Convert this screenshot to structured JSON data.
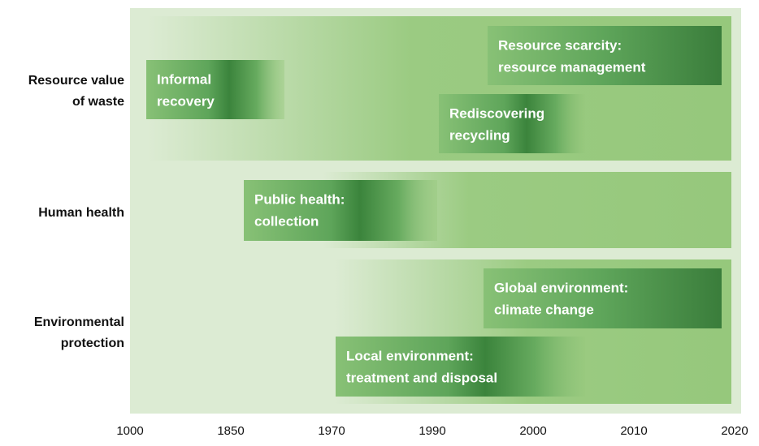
{
  "rows": [
    {
      "label": [
        "Resource value",
        "of waste"
      ]
    },
    {
      "label": [
        "Human health"
      ]
    },
    {
      "label": [
        "Environmental",
        "protection"
      ]
    }
  ],
  "boxes": [
    {
      "label": [
        "Informal",
        "recovery"
      ]
    },
    {
      "label": [
        "Resource scarcity:",
        "resource management"
      ]
    },
    {
      "label": [
        "Rediscovering",
        "recycling"
      ]
    },
    {
      "label": [
        "Public health:",
        "collection"
      ]
    },
    {
      "label": [
        "Global environment:",
        "climate change"
      ]
    },
    {
      "label": [
        "Local environment:",
        "treatment and disposal"
      ]
    }
  ],
  "axis": {
    "labels": [
      "1000",
      "1850",
      "1970",
      "1990",
      "2000",
      "2010",
      "2020"
    ]
  }
}
